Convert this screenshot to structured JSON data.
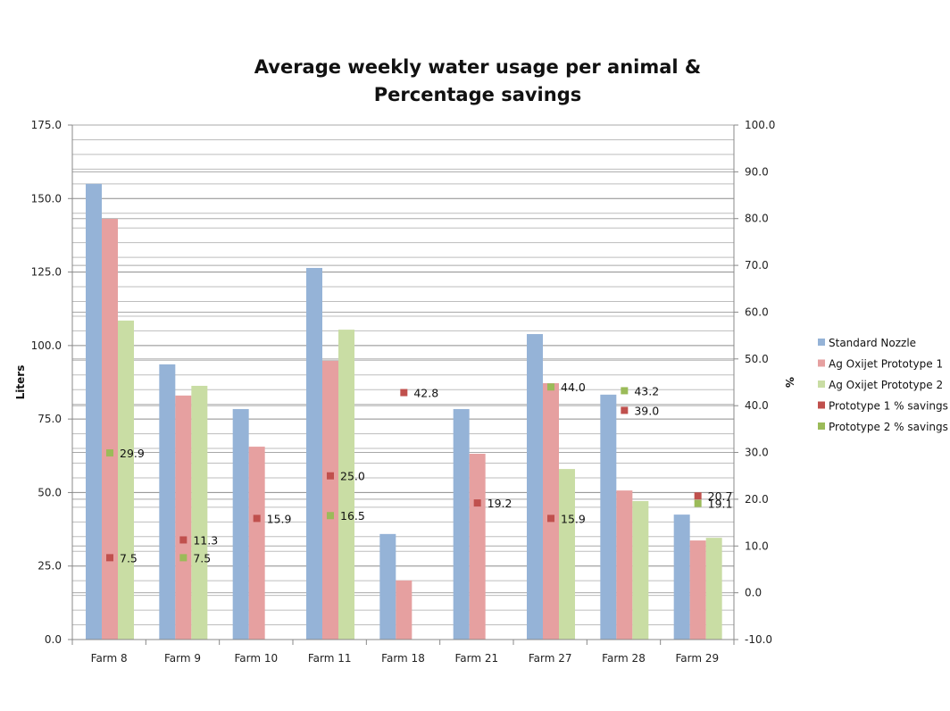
{
  "chart_data": {
    "type": "bar",
    "title": [
      "Average weekly water usage per animal &",
      "Percentage savings"
    ],
    "xlabel": "",
    "ylabel": "Liters",
    "y2label": "%",
    "categories": [
      "Farm 8",
      "Farm 9",
      "Farm 10",
      "Farm 11",
      "Farm 18",
      "Farm 21",
      "Farm 27",
      "Farm 28",
      "Farm 29"
    ],
    "ylim": [
      0,
      175
    ],
    "y_ticks": [
      0,
      25,
      50,
      75,
      100,
      125,
      150,
      175
    ],
    "y_tick_labels": [
      "0.0",
      "25.0",
      "50.0",
      "75.0",
      "100.0",
      "125.0",
      "150.0",
      "175.0"
    ],
    "y_minor_step": 5,
    "y2lim": [
      -10,
      100
    ],
    "y2_ticks": [
      -10,
      0,
      10,
      20,
      30,
      40,
      50,
      60,
      70,
      80,
      90,
      100
    ],
    "y2_tick_labels": [
      "-10.0",
      "0.0",
      "10.0",
      "20.0",
      "30.0",
      "40.0",
      "50.0",
      "60.0",
      "70.0",
      "80.0",
      "90.0",
      "100.0"
    ],
    "grid": true,
    "legend_position": "right",
    "series": [
      {
        "name": "Standard Nozzle",
        "kind": "bar",
        "axis": "left",
        "color": "#95b3d7",
        "values": [
          155.0,
          93.6,
          78.4,
          126.4,
          35.9,
          78.4,
          103.9,
          83.3,
          42.5
        ]
      },
      {
        "name": "Ag Oxijet Prototype 1",
        "kind": "bar",
        "axis": "left",
        "color": "#e6a0a0",
        "values": [
          143.1,
          83.0,
          65.6,
          94.8,
          20.1,
          63.2,
          87.2,
          50.7,
          33.7
        ]
      },
      {
        "name": "Ag Oxijet Prototype 2",
        "kind": "bar",
        "axis": "left",
        "color": "#c9dda4",
        "values": [
          108.5,
          86.3,
          null,
          105.4,
          null,
          null,
          58.0,
          47.1,
          34.6
        ]
      },
      {
        "name": "Prototype 1 % savings",
        "kind": "marker",
        "axis": "right",
        "color": "#c0504d",
        "values": [
          7.5,
          11.3,
          15.9,
          25.0,
          42.8,
          19.2,
          15.9,
          39.0,
          20.7
        ],
        "labels": [
          "7.5",
          "11.3",
          "15.9",
          "25.0",
          "42.8",
          "19.2",
          "15.9",
          "39.0",
          "20.7"
        ]
      },
      {
        "name": "Prototype 2 % savings",
        "kind": "marker",
        "axis": "right",
        "color": "#9bbb59",
        "values": [
          29.9,
          7.5,
          null,
          16.5,
          null,
          null,
          44.0,
          43.2,
          19.1
        ],
        "labels": [
          "29.9",
          "7.5",
          null,
          "16.5",
          null,
          null,
          "44.0",
          "43.2",
          "19.1"
        ]
      }
    ]
  }
}
